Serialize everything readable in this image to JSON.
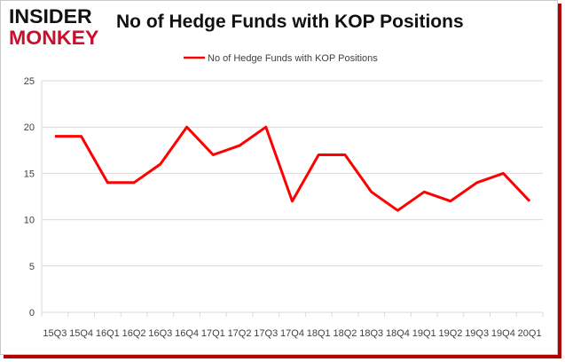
{
  "logo": {
    "line1": "INSIDER",
    "line2": "MONKEY"
  },
  "chart_data": {
    "type": "line",
    "title": "No of Hedge Funds with KOP Positions",
    "categories": [
      "15Q3",
      "15Q4",
      "16Q1",
      "16Q2",
      "16Q3",
      "16Q4",
      "17Q1",
      "17Q2",
      "17Q3",
      "17Q4",
      "18Q1",
      "18Q2",
      "18Q3",
      "18Q4",
      "19Q1",
      "19Q2",
      "19Q3",
      "19Q4",
      "20Q1"
    ],
    "series": [
      {
        "name": "No of Hedge Funds with KOP Positions",
        "values": [
          19,
          19,
          14,
          14,
          16,
          20,
          17,
          18,
          20,
          12,
          17,
          17,
          13,
          11,
          13,
          12,
          14,
          15,
          12
        ]
      }
    ],
    "ylim": [
      0,
      25
    ],
    "yticks": [
      0,
      5,
      10,
      15,
      20,
      25
    ],
    "grid": true,
    "legend_position": "top",
    "colors": {
      "line": "#ff0000",
      "grid": "#d9d9d9",
      "axis_text": "#404040"
    }
  }
}
